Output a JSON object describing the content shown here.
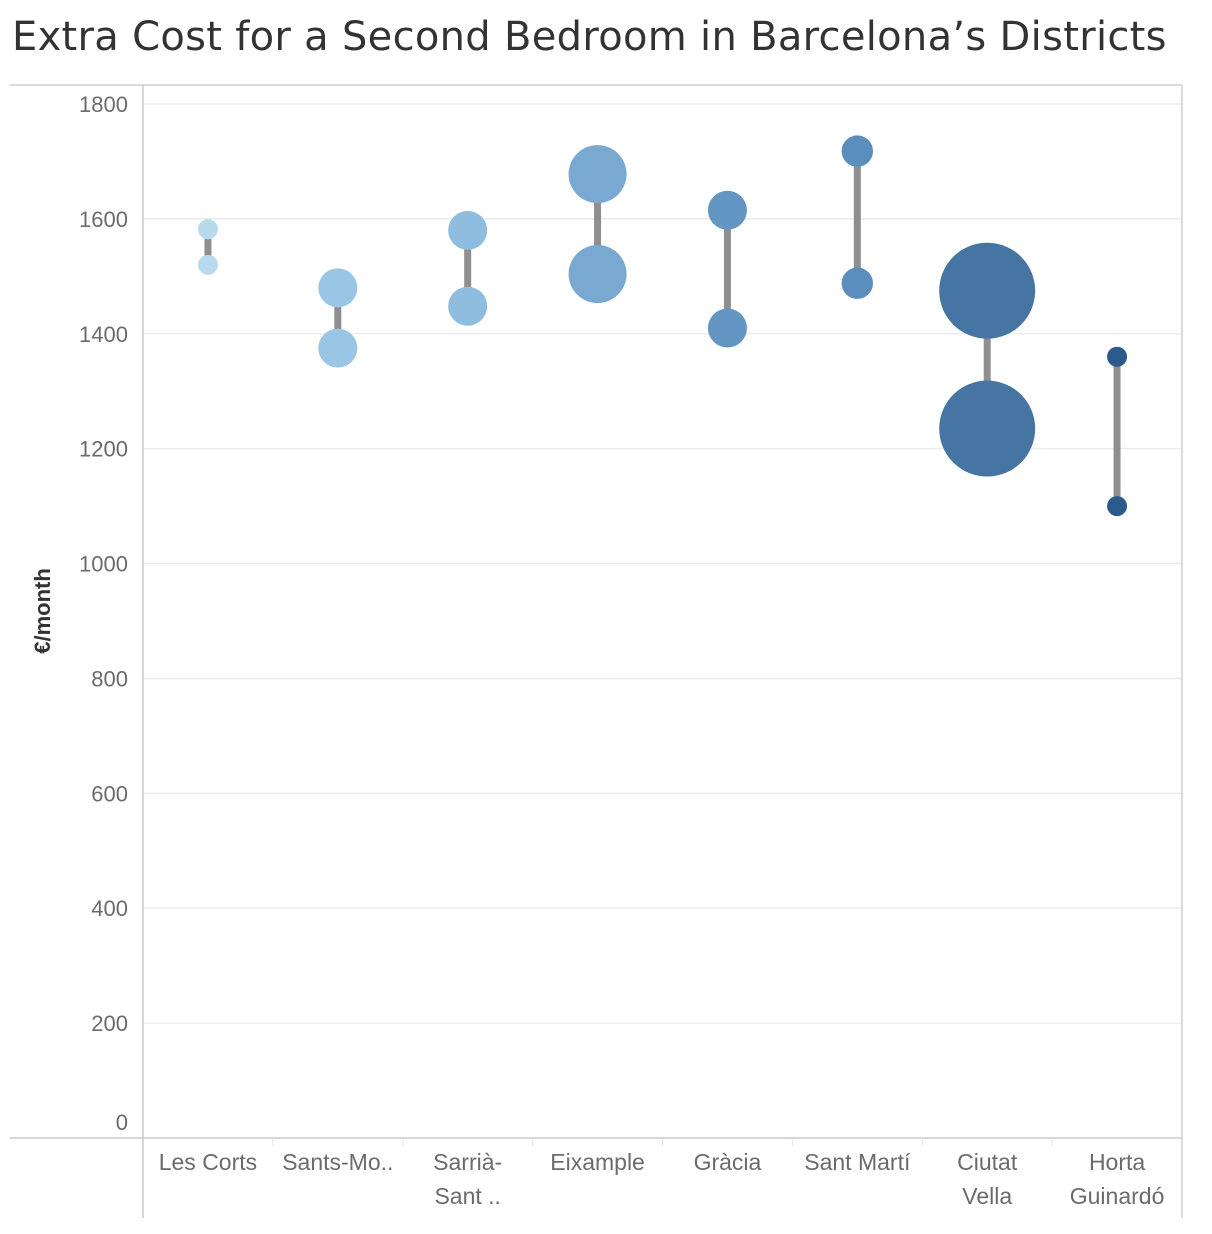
{
  "chart_data": {
    "type": "dumbbell",
    "title": "Extra Cost for a Second Bedroom in Barcelona’s Districts",
    "ylabel": "€/month",
    "xlabel": "",
    "ylim": [
      0,
      1800
    ],
    "yticks": [
      0,
      200,
      400,
      600,
      800,
      1000,
      1200,
      1400,
      1600,
      1800
    ],
    "grid": true,
    "categories": [
      {
        "lines": [
          "Les Corts"
        ],
        "upper": 1582,
        "lower": 1520,
        "color": "#b9d9ef",
        "size": 1
      },
      {
        "lines": [
          "Sants-Mo.."
        ],
        "upper": 1480,
        "lower": 1375,
        "color": "#9ac6e6",
        "size": 2
      },
      {
        "lines": [
          "Sarrià-",
          "Sant .."
        ],
        "upper": 1580,
        "lower": 1448,
        "color": "#8fbde0",
        "size": 2
      },
      {
        "lines": [
          "Eixample"
        ],
        "upper": 1678,
        "lower": 1504,
        "color": "#79a9d1",
        "size": 3
      },
      {
        "lines": [
          "Gràcia"
        ],
        "upper": 1615,
        "lower": 1410,
        "color": "#6496c3",
        "size": 2
      },
      {
        "lines": [
          "Sant Martí"
        ],
        "upper": 1718,
        "lower": 1488,
        "color": "#5b8dbd",
        "size": 1.6
      },
      {
        "lines": [
          "Ciutat",
          "Vella"
        ],
        "upper": 1475,
        "lower": 1235,
        "color": "#4775a3",
        "size": 5
      },
      {
        "lines": [
          "Horta",
          "Guinardó"
        ],
        "upper": 1360,
        "lower": 1100,
        "color": "#2b5b8c",
        "size": 1
      }
    ]
  }
}
